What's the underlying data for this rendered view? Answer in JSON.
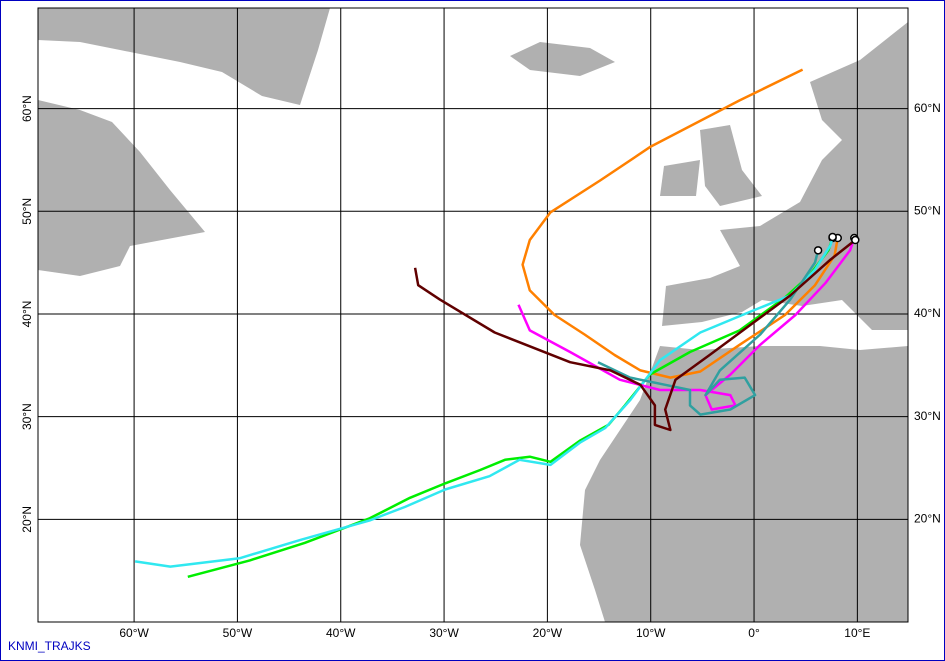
{
  "map": {
    "lonlim": [
      -69.3,
      14.9
    ],
    "latlim": [
      10,
      69.8
    ],
    "lon_ticks": [
      {
        "value": -60,
        "label": "60°W"
      },
      {
        "value": -50,
        "label": "50°W"
      },
      {
        "value": -40,
        "label": "40°W"
      },
      {
        "value": -30,
        "label": "30°W"
      },
      {
        "value": -20,
        "label": "20°W"
      },
      {
        "value": -10,
        "label": "10°W"
      },
      {
        "value": 0,
        "label": "0°"
      },
      {
        "value": 10,
        "label": "10°E"
      }
    ],
    "lat_ticks": [
      {
        "value": 60,
        "label": "60°N"
      },
      {
        "value": 50,
        "label": "50°N"
      },
      {
        "value": 40,
        "label": "40°N"
      },
      {
        "value": 30,
        "label": "30°N"
      },
      {
        "value": 20,
        "label": "20°N"
      }
    ],
    "footer": "KNMI_TRAJKS",
    "trajectories": [
      {
        "color": "#ff8000",
        "lon": [
          4.7,
          -1.4,
          -10,
          -14.9,
          -19.7,
          -21.7,
          -22.4,
          -21.7,
          -19.3,
          -16.4,
          -13.5,
          -11,
          -8.1,
          -5.2,
          -1.4,
          3,
          5.9,
          7.8,
          8.1
        ],
        "lat": [
          63.8,
          60.8,
          56.3,
          53,
          49.9,
          47.2,
          44.8,
          42.3,
          39.9,
          38,
          36,
          34.5,
          33.8,
          34.4,
          37,
          39.9,
          42.8,
          45.7,
          47.4
        ]
      },
      {
        "color": "#00ee00",
        "lon": [
          -54.8,
          -48.8,
          -43.5,
          -37.2,
          -33.3,
          -29.9,
          -26.5,
          -24.1,
          -21.7,
          -19.7,
          -16.8,
          -14.1,
          -12.5,
          -10.1,
          -6.2,
          -1.4,
          3,
          5.4,
          7.2,
          7.6
        ],
        "lat": [
          14.4,
          16,
          17.7,
          20.1,
          22.1,
          23.5,
          24.8,
          25.8,
          26.1,
          25.6,
          27.7,
          29.2,
          31.1,
          34.1,
          36.3,
          38.4,
          41.6,
          43.8,
          46.2,
          47.4
        ]
      },
      {
        "color": "#30e8f0",
        "lon": [
          -59.9,
          -56.5,
          -49.8,
          -43.9,
          -37.2,
          -33.8,
          -29.9,
          -25.6,
          -22.7,
          -19.7,
          -16.8,
          -14.4,
          -12,
          -9.1,
          -5.2,
          -0.4,
          3.5,
          5.9,
          7.4,
          7.6
        ],
        "lat": [
          15.9,
          15.4,
          16.2,
          18,
          19.9,
          21.2,
          22.9,
          24.2,
          25.8,
          25.3,
          27.5,
          28.9,
          31.6,
          35.5,
          38.2,
          40.2,
          41.8,
          44.3,
          46.7,
          47.5
        ]
      },
      {
        "color": "#ff00ff",
        "lon": [
          -22.8,
          -21.7,
          -17.8,
          -13,
          -9.1,
          -5.2,
          -2.3,
          -1.8,
          -4.1,
          -4.7,
          -2.3,
          0.6,
          4,
          6.9,
          9.3,
          9.7
        ],
        "lat": [
          40.9,
          38.4,
          36.3,
          33.6,
          32.6,
          32.6,
          32.1,
          31.1,
          30.7,
          32.1,
          34.1,
          37,
          39.9,
          43,
          46.2,
          47.4
        ]
      },
      {
        "color": "#30a0a0",
        "lon": [
          -15.1,
          -12,
          -8.6,
          -6.2,
          -6.2,
          -5.2,
          -2.3,
          0.1,
          -0.9,
          -3.3,
          -4.7,
          -3.3,
          0.6,
          3.5,
          5.9,
          6.2
        ],
        "lat": [
          35.3,
          33.8,
          33.1,
          32.6,
          31.1,
          30.2,
          30.7,
          32.1,
          33.8,
          33.6,
          32.1,
          34.5,
          38,
          41.4,
          45,
          46.2
        ]
      },
      {
        "color": "#600000",
        "lon": [
          -32.8,
          -32.5,
          -30.4,
          -25.1,
          -17.8,
          -13.9,
          -11,
          -9.6,
          -9.6,
          -8.1,
          -8.6,
          -7.6,
          -4.3,
          -0.4,
          3.5,
          7.4,
          9.8
        ],
        "lat": [
          44.5,
          42.8,
          41.4,
          38.2,
          35.3,
          34.5,
          33.1,
          31.1,
          29.2,
          28.7,
          30.7,
          33.6,
          36,
          38.9,
          41.8,
          45.3,
          47.2
        ]
      }
    ]
  }
}
